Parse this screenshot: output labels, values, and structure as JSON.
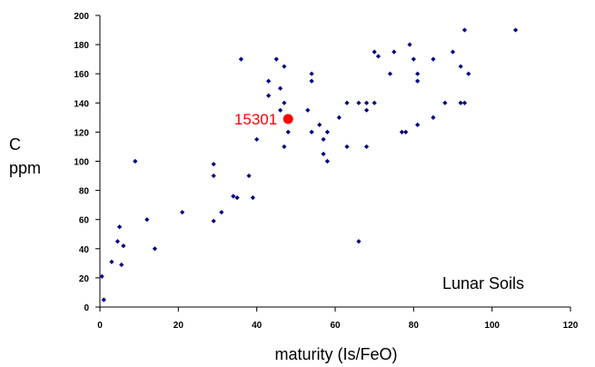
{
  "chart_data": {
    "type": "scatter",
    "title": "",
    "xlabel": "maturity (Is/FeO)",
    "ylabel_lines": [
      "C",
      "ppm"
    ],
    "annotation": "Lunar Soils",
    "xlim": [
      0,
      120
    ],
    "ylim": [
      0,
      200
    ],
    "x_ticks": [
      0,
      20,
      40,
      60,
      80,
      100,
      120
    ],
    "y_ticks": [
      0,
      20,
      40,
      60,
      80,
      100,
      120,
      140,
      160,
      180,
      200
    ],
    "grid": false,
    "legend": "none",
    "marker_color": "#000080",
    "points": [
      {
        "x": 0.5,
        "y": 21
      },
      {
        "x": 1,
        "y": 5
      },
      {
        "x": 3,
        "y": 31
      },
      {
        "x": 4.5,
        "y": 45
      },
      {
        "x": 5,
        "y": 55
      },
      {
        "x": 5.5,
        "y": 29
      },
      {
        "x": 6,
        "y": 42
      },
      {
        "x": 9,
        "y": 100
      },
      {
        "x": 12,
        "y": 60
      },
      {
        "x": 14,
        "y": 40
      },
      {
        "x": 21,
        "y": 65
      },
      {
        "x": 29,
        "y": 98
      },
      {
        "x": 29,
        "y": 90
      },
      {
        "x": 29,
        "y": 59
      },
      {
        "x": 31,
        "y": 65
      },
      {
        "x": 34,
        "y": 76
      },
      {
        "x": 35,
        "y": 75
      },
      {
        "x": 36,
        "y": 170
      },
      {
        "x": 38,
        "y": 90
      },
      {
        "x": 39,
        "y": 75
      },
      {
        "x": 40,
        "y": 115
      },
      {
        "x": 43,
        "y": 155
      },
      {
        "x": 43,
        "y": 145
      },
      {
        "x": 45,
        "y": 170
      },
      {
        "x": 46,
        "y": 150
      },
      {
        "x": 46,
        "y": 135
      },
      {
        "x": 47,
        "y": 165
      },
      {
        "x": 47,
        "y": 140
      },
      {
        "x": 47,
        "y": 110
      },
      {
        "x": 48,
        "y": 120
      },
      {
        "x": 53,
        "y": 135
      },
      {
        "x": 54,
        "y": 160
      },
      {
        "x": 54,
        "y": 155
      },
      {
        "x": 54,
        "y": 120
      },
      {
        "x": 56,
        "y": 125
      },
      {
        "x": 57,
        "y": 115
      },
      {
        "x": 57,
        "y": 105
      },
      {
        "x": 58,
        "y": 120
      },
      {
        "x": 58,
        "y": 100
      },
      {
        "x": 61,
        "y": 130
      },
      {
        "x": 63,
        "y": 140
      },
      {
        "x": 63,
        "y": 110
      },
      {
        "x": 66,
        "y": 140
      },
      {
        "x": 66,
        "y": 45
      },
      {
        "x": 68,
        "y": 140
      },
      {
        "x": 68,
        "y": 135
      },
      {
        "x": 68,
        "y": 110
      },
      {
        "x": 70,
        "y": 175
      },
      {
        "x": 70,
        "y": 140
      },
      {
        "x": 71,
        "y": 172
      },
      {
        "x": 74,
        "y": 160
      },
      {
        "x": 75,
        "y": 175
      },
      {
        "x": 77,
        "y": 120
      },
      {
        "x": 78,
        "y": 120
      },
      {
        "x": 79,
        "y": 180
      },
      {
        "x": 80,
        "y": 170
      },
      {
        "x": 81,
        "y": 160
      },
      {
        "x": 81,
        "y": 155
      },
      {
        "x": 81,
        "y": 125
      },
      {
        "x": 85,
        "y": 170
      },
      {
        "x": 85,
        "y": 130
      },
      {
        "x": 88,
        "y": 140
      },
      {
        "x": 90,
        "y": 175
      },
      {
        "x": 92,
        "y": 165
      },
      {
        "x": 92,
        "y": 140
      },
      {
        "x": 93,
        "y": 190
      },
      {
        "x": 93,
        "y": 140
      },
      {
        "x": 94,
        "y": 160
      },
      {
        "x": 106,
        "y": 190
      }
    ],
    "highlight": {
      "label": "15301",
      "x": 48,
      "y": 129,
      "color": "#ff0000"
    }
  }
}
